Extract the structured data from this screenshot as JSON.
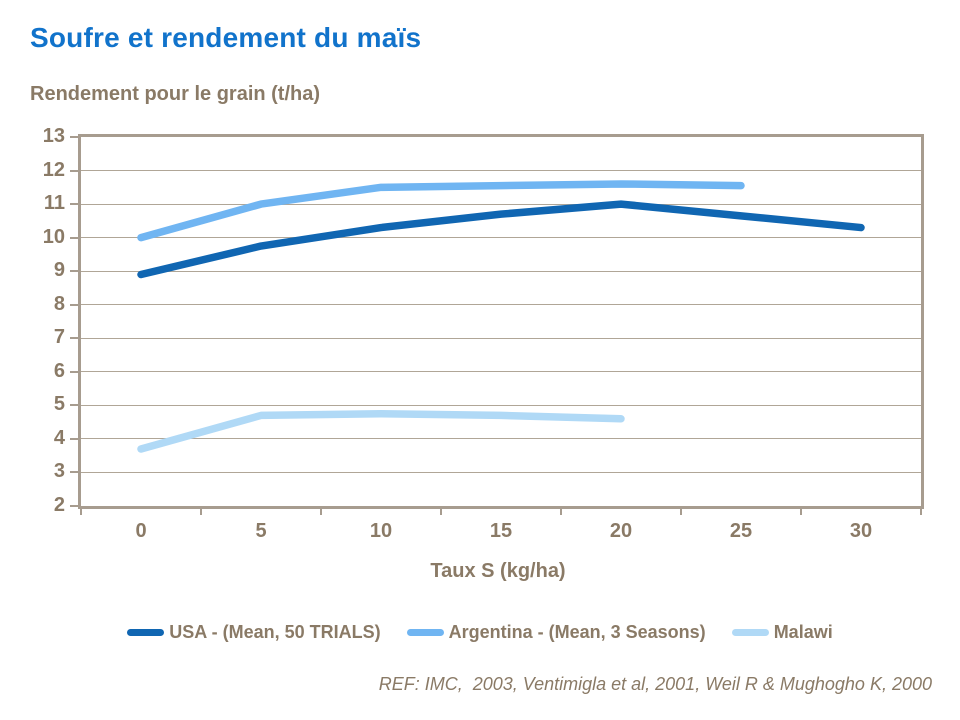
{
  "title": "Soufre et rendement du maïs",
  "subtitle": "Rendement pour le grain (t/ha)",
  "footer": "REF: IMC,  2003, Ventimigla et al, 2001, Weil R & Mughogho K, 2000",
  "colors": {
    "title": "#1173CB",
    "text": "#8A7A66",
    "grid": "#B0A697",
    "axis": "#A79C8F",
    "usa": "#1066B2",
    "argentina": "#70B5F2",
    "malawi": "#B0D9F6"
  },
  "chart_data": {
    "type": "line",
    "title": "Soufre et rendement du maïs",
    "ylabel": "Rendement pour le grain (t/ha)",
    "xlabel": "Taux S (kg/ha)",
    "x": [
      0,
      5,
      10,
      15,
      20,
      25,
      30
    ],
    "ylim": [
      2,
      13
    ],
    "ytick_step": 1,
    "grid": "horizontal-only",
    "legend_position": "bottom",
    "line_width": 7.5,
    "series": [
      {
        "name": "USA - (Mean, 50 TRIALS)",
        "color_key": "usa",
        "values": [
          8.9,
          9.75,
          10.3,
          10.7,
          11.0,
          10.65,
          10.3
        ]
      },
      {
        "name": "Argentina - (Mean, 3 Seasons)",
        "color_key": "argentina",
        "values": [
          10.0,
          11.0,
          11.5,
          11.55,
          11.6,
          11.55,
          null
        ]
      },
      {
        "name": "Malawi",
        "color_key": "malawi",
        "values": [
          3.7,
          4.7,
          4.75,
          4.7,
          4.6,
          null,
          null
        ]
      }
    ]
  }
}
